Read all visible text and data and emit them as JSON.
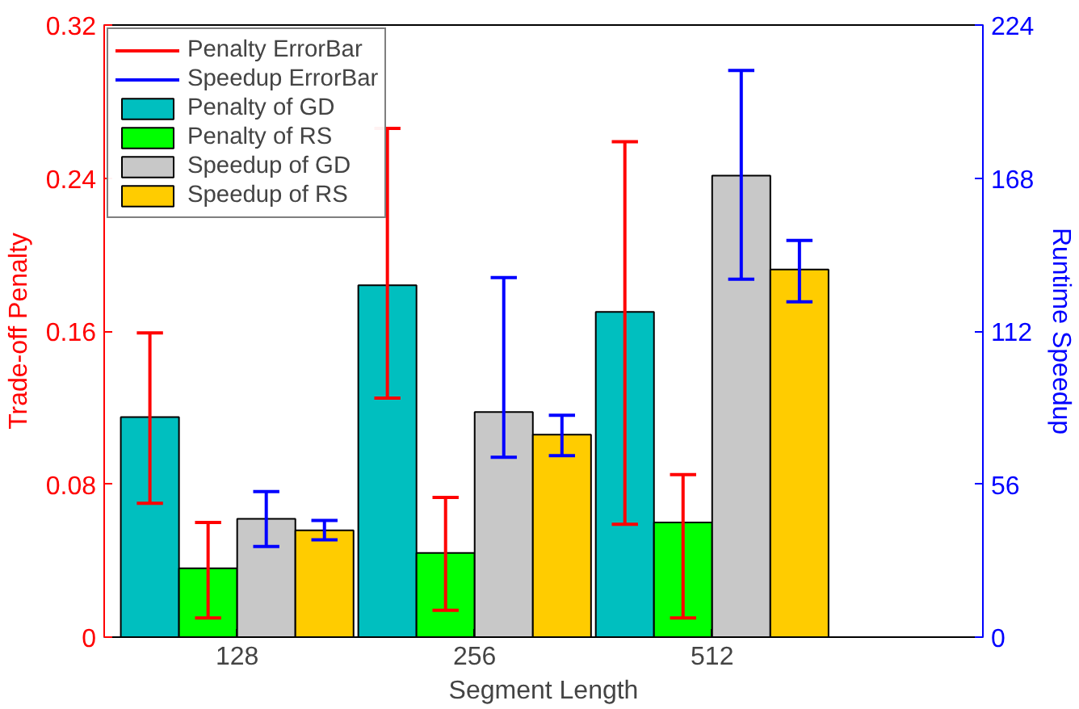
{
  "chart_data": {
    "type": "bar",
    "xlabel": "Segment Length",
    "ylabel": "Trade-off Penalty",
    "y2label": "Runtime Speedup",
    "categories": [
      "128",
      "256",
      "512"
    ],
    "series": [
      {
        "name": "Penalty of GD",
        "color": "#00bfbf",
        "values": [
          0.115,
          0.184,
          0.17
        ],
        "errors": [
          [
            0.07,
            0.159
          ],
          [
            0.125,
            0.266
          ],
          [
            0.059,
            0.259
          ]
        ]
      },
      {
        "name": "Penalty of RS",
        "color": "#00ff00",
        "values": [
          0.036,
          0.044,
          0.06
        ],
        "errors": [
          [
            0.01,
            0.06
          ],
          [
            0.014,
            0.073
          ],
          [
            0.01,
            0.085
          ]
        ]
      },
      {
        "name": "Speedup of GD",
        "color": "#c8c8c8",
        "axis": "y2",
        "values": [
          43.3,
          82.4,
          168.9
        ],
        "errors": [
          [
            33.2,
            53.3
          ],
          [
            65.8,
            131.6
          ],
          [
            131.0,
            207.4
          ]
        ]
      },
      {
        "name": "Speedup of RS",
        "color": "#ffcc00",
        "axis": "y2",
        "values": [
          39.1,
          74.1,
          134.5
        ],
        "errors": [
          [
            35.6,
            42.7
          ],
          [
            66.4,
            81.2
          ],
          [
            122.7,
            145.2
          ]
        ]
      }
    ],
    "annotations": [
      "Penalty ErrorBar",
      "Speedup ErrorBar"
    ],
    "ylim": [
      0,
      0.32
    ],
    "yticks": [
      0,
      0.08,
      0.16,
      0.24,
      0.32
    ],
    "y2lim": [
      0,
      224
    ],
    "y2ticks": [
      0,
      56,
      112,
      168,
      224
    ],
    "legend": "top left",
    "grid": false
  }
}
